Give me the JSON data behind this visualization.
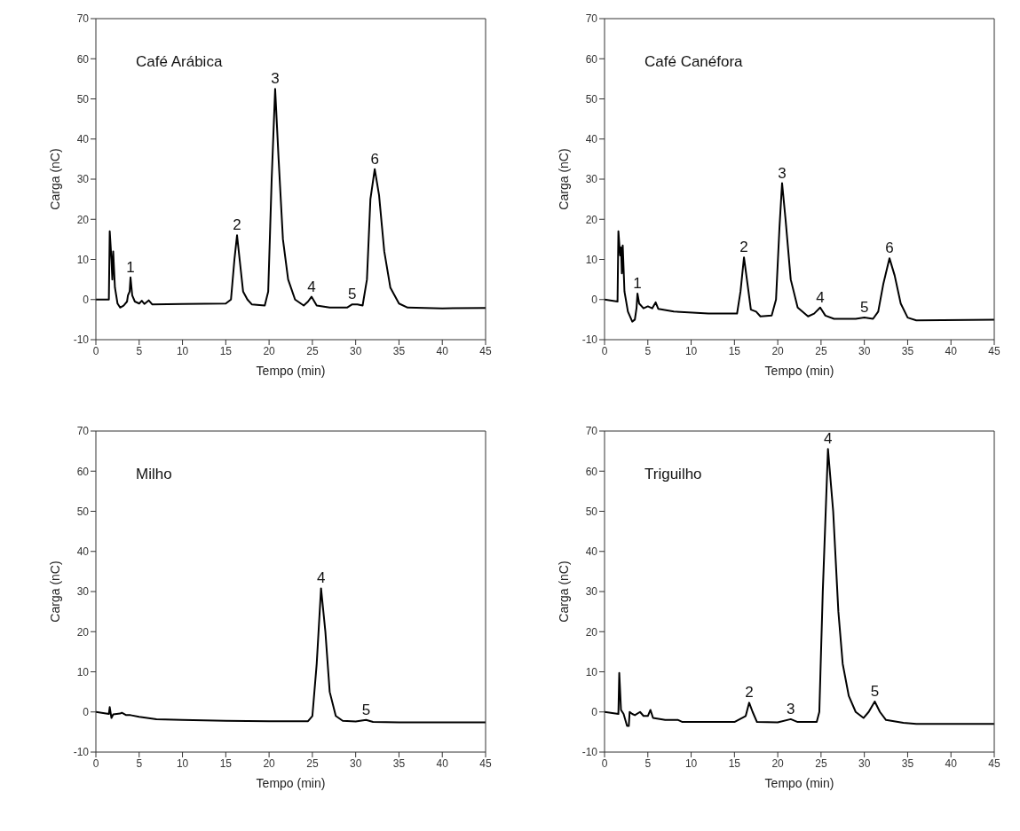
{
  "chart_data": [
    {
      "type": "line",
      "title": "Café Arábica",
      "xlabel": "Tempo (min)",
      "ylabel": "Carga (nC)",
      "xlim": [
        0,
        45
      ],
      "xticks": [
        0,
        5,
        10,
        15,
        20,
        25,
        30,
        35,
        40,
        45
      ],
      "ylim": [
        -10,
        70
      ],
      "yticks": [
        -10,
        0,
        10,
        20,
        30,
        40,
        50,
        60,
        70
      ],
      "series": [
        {
          "color": "#000000",
          "x": [
            0,
            1.5,
            1.6,
            1.8,
            1.9,
            2.0,
            2.2,
            2.5,
            2.8,
            3.2,
            3.6,
            3.7,
            3.9,
            4.0,
            4.2,
            4.5,
            5.0,
            5.3,
            5.6,
            6.1,
            6.5,
            10,
            15,
            15.6,
            16.0,
            16.3,
            16.6,
            17.0,
            17.5,
            18.0,
            19.5,
            19.9,
            20.3,
            20.7,
            21.1,
            21.6,
            22.2,
            23,
            24,
            24.5,
            24.9,
            25.5,
            27,
            29,
            29.6,
            30.2,
            30.8,
            31.3,
            31.7,
            32.2,
            32.7,
            33.3,
            34,
            35,
            36,
            40,
            45
          ],
          "values": [
            0,
            0,
            17,
            10,
            5,
            12,
            3,
            -1,
            -2,
            -1.5,
            -0.5,
            1,
            2,
            5.5,
            1,
            -0.5,
            -1,
            -0.3,
            -1.1,
            -0.2,
            -1.2,
            -1.1,
            -1,
            0,
            10,
            16,
            10,
            2,
            0,
            -1.2,
            -1.5,
            2,
            30,
            52.5,
            35,
            15,
            5,
            0,
            -1.5,
            -0.5,
            0.7,
            -1.5,
            -2,
            -2,
            -1.2,
            -1.2,
            -1.5,
            5,
            25,
            32.5,
            26,
            12,
            3,
            -1,
            -2,
            -2.2,
            -2.1
          ]
        }
      ],
      "annotations": [
        {
          "text": "1",
          "x": 4.0,
          "y": 5.5
        },
        {
          "text": "2",
          "x": 16.3,
          "y": 16
        },
        {
          "text": "3",
          "x": 20.7,
          "y": 52.5
        },
        {
          "text": "4",
          "x": 24.9,
          "y": 0.7
        },
        {
          "text": "5",
          "x": 29.6,
          "y": -1.2
        },
        {
          "text": "6",
          "x": 32.2,
          "y": 32.5
        }
      ]
    },
    {
      "type": "line",
      "title": "Café Canéfora",
      "xlabel": "Tempo (min)",
      "ylabel": "Carga (nC)",
      "xlim": [
        0,
        45
      ],
      "xticks": [
        0,
        5,
        10,
        15,
        20,
        25,
        30,
        35,
        40,
        45
      ],
      "ylim": [
        -10,
        70
      ],
      "yticks": [
        -10,
        0,
        10,
        20,
        30,
        40,
        50,
        60,
        70
      ],
      "series": [
        {
          "color": "#000000",
          "x": [
            0,
            1.5,
            1.6,
            1.8,
            1.9,
            2.0,
            2.1,
            2.3,
            2.7,
            3.2,
            3.5,
            3.7,
            3.8,
            4.0,
            4.5,
            5.0,
            5.5,
            5.9,
            6.2,
            8,
            12,
            15.3,
            15.7,
            16.1,
            16.5,
            16.9,
            17.5,
            18,
            19.3,
            19.8,
            20.2,
            20.5,
            20.9,
            21.5,
            22.3,
            23.5,
            24.2,
            24.9,
            25.5,
            26.5,
            29,
            30,
            31,
            31.6,
            32.2,
            32.9,
            33.5,
            34.2,
            35,
            36,
            45
          ],
          "values": [
            0,
            -0.5,
            17,
            11,
            13,
            6.5,
            13.5,
            2,
            -3,
            -5.5,
            -5,
            -2,
            1.5,
            -1,
            -2.2,
            -1.7,
            -2.2,
            -0.7,
            -2.3,
            -3,
            -3.5,
            -3.5,
            2,
            10.5,
            4,
            -2.5,
            -3,
            -4.2,
            -4,
            0,
            18,
            29,
            20,
            5,
            -2,
            -4.2,
            -3.5,
            -2,
            -4,
            -4.8,
            -4.8,
            -4.5,
            -4.8,
            -3,
            4,
            10.3,
            6,
            -1,
            -4.5,
            -5.2,
            -5
          ]
        }
      ],
      "annotations": [
        {
          "text": "1",
          "x": 3.8,
          "y": 1.5
        },
        {
          "text": "2",
          "x": 16.1,
          "y": 10.5
        },
        {
          "text": "3",
          "x": 20.5,
          "y": 29
        },
        {
          "text": "4",
          "x": 24.9,
          "y": -2
        },
        {
          "text": "5",
          "x": 30,
          "y": -4.5
        },
        {
          "text": "6",
          "x": 32.9,
          "y": 10.3
        }
      ]
    },
    {
      "type": "line",
      "title": "Milho",
      "xlabel": "Tempo (min)",
      "ylabel": "Carga (nC)",
      "xlim": [
        0,
        45
      ],
      "xticks": [
        0,
        5,
        10,
        15,
        20,
        25,
        30,
        35,
        40,
        45
      ],
      "ylim": [
        -10,
        70
      ],
      "yticks": [
        -10,
        0,
        10,
        20,
        30,
        40,
        50,
        60,
        70
      ],
      "series": [
        {
          "color": "#000000",
          "x": [
            0,
            1.5,
            1.6,
            1.8,
            2.0,
            2.8,
            3.0,
            3.5,
            4,
            5,
            7,
            10,
            15,
            20,
            24.5,
            25.0,
            25.5,
            26.0,
            26.5,
            27.0,
            27.7,
            28.5,
            30,
            31.2,
            32,
            35,
            45
          ],
          "values": [
            0,
            -0.5,
            1.2,
            -1.5,
            -0.6,
            -0.4,
            -0.2,
            -0.8,
            -0.8,
            -1.2,
            -1.8,
            -2.0,
            -2.2,
            -2.3,
            -2.3,
            -1,
            12,
            30.8,
            20,
            5,
            -1,
            -2.2,
            -2.4,
            -2.0,
            -2.5,
            -2.6,
            -2.6
          ]
        }
      ],
      "annotations": [
        {
          "text": "4",
          "x": 26.0,
          "y": 30.8
        },
        {
          "text": "5",
          "x": 31.2,
          "y": -2.0
        }
      ]
    },
    {
      "type": "line",
      "title": "Triguilho",
      "xlabel": "Tempo (min)",
      "ylabel": "Carga (nC)",
      "xlim": [
        0,
        45
      ],
      "xticks": [
        0,
        5,
        10,
        15,
        20,
        25,
        30,
        35,
        40,
        45
      ],
      "ylim": [
        -10,
        70
      ],
      "yticks": [
        -10,
        0,
        10,
        20,
        30,
        40,
        50,
        60,
        70
      ],
      "series": [
        {
          "color": "#000000",
          "x": [
            0,
            1.6,
            1.7,
            1.9,
            2.2,
            2.6,
            2.8,
            2.9,
            3.2,
            3.5,
            4.1,
            4.5,
            5.0,
            5.3,
            5.6,
            7,
            8.5,
            9,
            15,
            16.3,
            16.7,
            17.1,
            17.6,
            20,
            21.5,
            22.3,
            24.5,
            24.8,
            25.2,
            25.8,
            26.4,
            27,
            27.5,
            28.2,
            29,
            29.9,
            30.5,
            31.2,
            31.8,
            32.5,
            34.5,
            36,
            45
          ],
          "values": [
            0,
            -0.5,
            9.7,
            0.5,
            -0.5,
            -3.5,
            -3.5,
            0,
            -0.5,
            -0.8,
            0,
            -1,
            -1,
            0.5,
            -1.5,
            -2,
            -2,
            -2.5,
            -2.5,
            -1,
            2.3,
            0,
            -2.5,
            -2.6,
            -1.8,
            -2.5,
            -2.5,
            0,
            30,
            65.5,
            50,
            25,
            12,
            4,
            0,
            -1.5,
            0,
            2.6,
            0,
            -2,
            -2.7,
            -3,
            -3
          ]
        }
      ],
      "annotations": [
        {
          "text": "2",
          "x": 16.7,
          "y": 2.3
        },
        {
          "text": "3",
          "x": 21.5,
          "y": -1.8
        },
        {
          "text": "4",
          "x": 25.8,
          "y": 65.5
        },
        {
          "text": "5",
          "x": 31.2,
          "y": 2.6
        }
      ]
    }
  ]
}
